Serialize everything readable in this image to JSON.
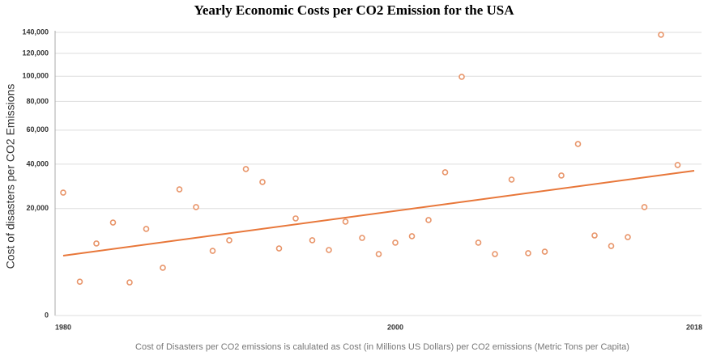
{
  "chart_data": {
    "type": "scatter",
    "title": "Yearly Economic Costs per CO2 Emission for the USA",
    "y_label": "Cost of disasters per CO2 Emissions",
    "x_label": "Cost of Disasters per CO2 emissions is calulated as Cost (in Millions US Dollars) per CO2 emissions (Metric Tons per Capita)",
    "y_scale": "sqrt",
    "grid": true,
    "x": [
      1980,
      1981,
      1982,
      1983,
      1984,
      1985,
      1986,
      1987,
      1988,
      1989,
      1990,
      1991,
      1992,
      1993,
      1994,
      1995,
      1996,
      1997,
      1998,
      1999,
      2000,
      2001,
      2002,
      2003,
      2004,
      2005,
      2006,
      2007,
      2008,
      2009,
      2010,
      2011,
      2012,
      2013,
      2014,
      2015,
      2016,
      2017
    ],
    "series": [
      {
        "color": "#e8956a",
        "values": [
          26400,
          2000,
          9060,
          15100,
          1920,
          13090,
          3980,
          27800,
          20530,
          7310,
          9890,
          37450,
          31120,
          7870,
          16460,
          9890,
          7500,
          15380,
          10530,
          6600,
          9260,
          10980,
          15920,
          35810,
          99470,
          9260,
          6600,
          32260,
          6780,
          7130,
          34220,
          51380,
          11200,
          8450,
          10750,
          20530,
          137630,
          39550
        ]
      }
    ],
    "trendline": {
      "color": "#e8773a",
      "x": [
        1980,
        2018
      ],
      "values": [
        6260,
        36630
      ]
    },
    "xlim": [
      1980,
      2018
    ],
    "xticks": [
      1980,
      2000,
      2018
    ],
    "ylim": [
      0,
      140000
    ],
    "yticks": [
      0,
      {
        "value": 20000,
        "label": "20,000"
      },
      {
        "value": 40000,
        "label": "40,000"
      },
      {
        "value": 60000,
        "label": "60,000"
      },
      {
        "value": 80000,
        "label": "80,000"
      },
      {
        "value": 100000,
        "label": "100,000"
      },
      {
        "value": 120000,
        "label": "120,000"
      },
      {
        "value": 140000,
        "label": "140,000"
      }
    ]
  }
}
